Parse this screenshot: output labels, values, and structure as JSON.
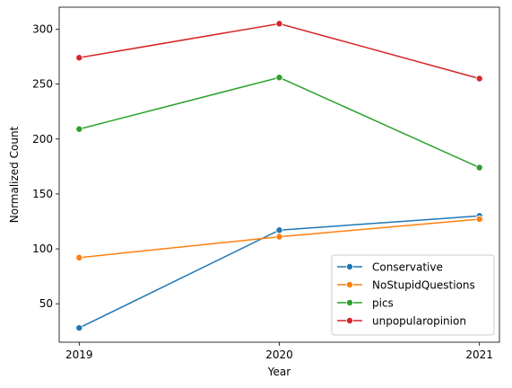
{
  "chart_data": {
    "type": "line",
    "title": "",
    "xlabel": "Year",
    "ylabel": "Normalized Count",
    "x": [
      "2019",
      "2020",
      "2021"
    ],
    "xlim": [
      2018.9,
      2021.1
    ],
    "ylim": [
      15,
      320
    ],
    "yticks": [
      50,
      100,
      150,
      200,
      250,
      300
    ],
    "grid": false,
    "legend_position": "lower-right",
    "series": [
      {
        "name": "Conservative",
        "color": "#1f77b4",
        "values": [
          28,
          117,
          130
        ]
      },
      {
        "name": "NoStupidQuestions",
        "color": "#ff7f0e",
        "values": [
          92,
          111,
          127
        ]
      },
      {
        "name": "pics",
        "color": "#2ca02c",
        "values": [
          209,
          256,
          174
        ]
      },
      {
        "name": "unpopularopinion",
        "color": "#d62728",
        "values": [
          274,
          305,
          255
        ]
      }
    ]
  }
}
